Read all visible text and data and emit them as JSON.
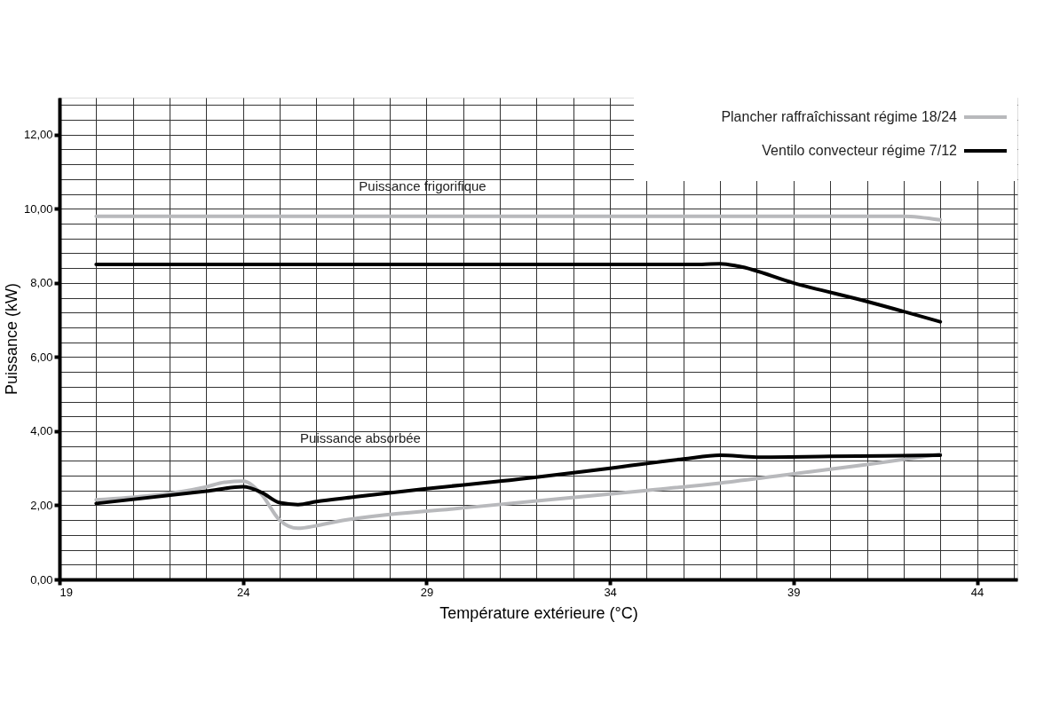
{
  "chart_data": {
    "type": "line",
    "xlabel": "Température extérieure (°C)",
    "ylabel": "Puissance (kW)",
    "xlim": [
      19,
      45.1
    ],
    "ylim": [
      0,
      13
    ],
    "xticks": [
      19,
      {
        "value": 20,
        "label": null
      },
      {
        "value": 21,
        "label": null
      },
      {
        "value": 22,
        "label": null
      },
      {
        "value": 23,
        "label": null
      },
      24,
      {
        "value": 25,
        "label": null
      },
      {
        "value": 26,
        "label": null
      },
      {
        "value": 27,
        "label": null
      },
      {
        "value": 28,
        "label": null
      },
      29,
      {
        "value": 30,
        "label": null
      },
      {
        "value": 31,
        "label": null
      },
      {
        "value": 32,
        "label": null
      },
      {
        "value": 33,
        "label": null
      },
      34,
      {
        "value": 35,
        "label": null
      },
      {
        "value": 36,
        "label": null
      },
      {
        "value": 37,
        "label": null
      },
      {
        "value": 38,
        "label": null
      },
      39,
      {
        "value": 40,
        "label": null
      },
      {
        "value": 41,
        "label": null
      },
      {
        "value": 42,
        "label": null
      },
      {
        "value": 43,
        "label": null
      },
      44,
      {
        "value": 45,
        "label": null
      }
    ],
    "yticks": [
      {
        "value": 0,
        "label": "0,00"
      },
      {
        "value": 0.4,
        "label": null
      },
      {
        "value": 0.8,
        "label": null
      },
      {
        "value": 1.2,
        "label": null
      },
      {
        "value": 1.6,
        "label": null
      },
      {
        "value": 2,
        "label": "2,00"
      },
      {
        "value": 2.4,
        "label": null
      },
      {
        "value": 2.8,
        "label": null
      },
      {
        "value": 3.2,
        "label": null
      },
      {
        "value": 3.6,
        "label": null
      },
      {
        "value": 4,
        "label": "4,00"
      },
      {
        "value": 4.4,
        "label": null
      },
      {
        "value": 4.8,
        "label": null
      },
      {
        "value": 5.2,
        "label": null
      },
      {
        "value": 5.6,
        "label": null
      },
      {
        "value": 6,
        "label": "6,00"
      },
      {
        "value": 6.4,
        "label": null
      },
      {
        "value": 6.8,
        "label": null
      },
      {
        "value": 7.2,
        "label": null
      },
      {
        "value": 7.6,
        "label": null
      },
      {
        "value": 8,
        "label": "8,00"
      },
      {
        "value": 8.4,
        "label": null
      },
      {
        "value": 8.8,
        "label": null
      },
      {
        "value": 9.2,
        "label": null
      },
      {
        "value": 9.6,
        "label": null
      },
      {
        "value": 10,
        "label": "10,00"
      },
      {
        "value": 10.4,
        "label": null
      },
      {
        "value": 10.8,
        "label": null
      },
      {
        "value": 11.2,
        "label": null
      },
      {
        "value": 11.6,
        "label": null
      },
      {
        "value": 12,
        "label": "12,00"
      },
      {
        "value": 12.4,
        "label": null
      },
      {
        "value": 12.8,
        "label": null
      }
    ],
    "grid": true,
    "legend": "top right",
    "line_style": "solid",
    "marker": "none",
    "series": [
      {
        "name": "Plancher raffraîchissant régime 18/24",
        "color": "#b8b9bc",
        "x": [
          20,
          42,
          43
        ],
        "values": [
          9.8,
          9.8,
          9.7
        ]
      },
      {
        "name": "Ventilo convecteur régime 7/12",
        "color": "#000000",
        "x": [
          20,
          36.5,
          37,
          37.5,
          39,
          41,
          43
        ],
        "values": [
          8.5,
          8.5,
          8.52,
          8.45,
          8.0,
          7.5,
          6.95
        ]
      },
      {
        "color": "#b8b9bc",
        "x": [
          20,
          23,
          23.5,
          24,
          24.5,
          25,
          25.5,
          26,
          26.5,
          30,
          35,
          37,
          39,
          41,
          43
        ],
        "values": [
          2.15,
          2.5,
          2.62,
          2.65,
          2.3,
          1.6,
          1.38,
          1.45,
          1.55,
          1.93,
          2.4,
          2.6,
          2.85,
          3.1,
          3.38
        ]
      },
      {
        "color": "#000000",
        "x": [
          20,
          23,
          24,
          24.5,
          25,
          25.5,
          26,
          27,
          29,
          31,
          34,
          36,
          37,
          38,
          40,
          43
        ],
        "values": [
          2.05,
          2.38,
          2.5,
          2.35,
          2.07,
          2.02,
          2.1,
          2.22,
          2.45,
          2.65,
          3.0,
          3.25,
          3.35,
          3.3,
          3.32,
          3.35
        ]
      }
    ],
    "annotations": [
      "Puissance frigorifique",
      "Puissance absorbée"
    ]
  }
}
